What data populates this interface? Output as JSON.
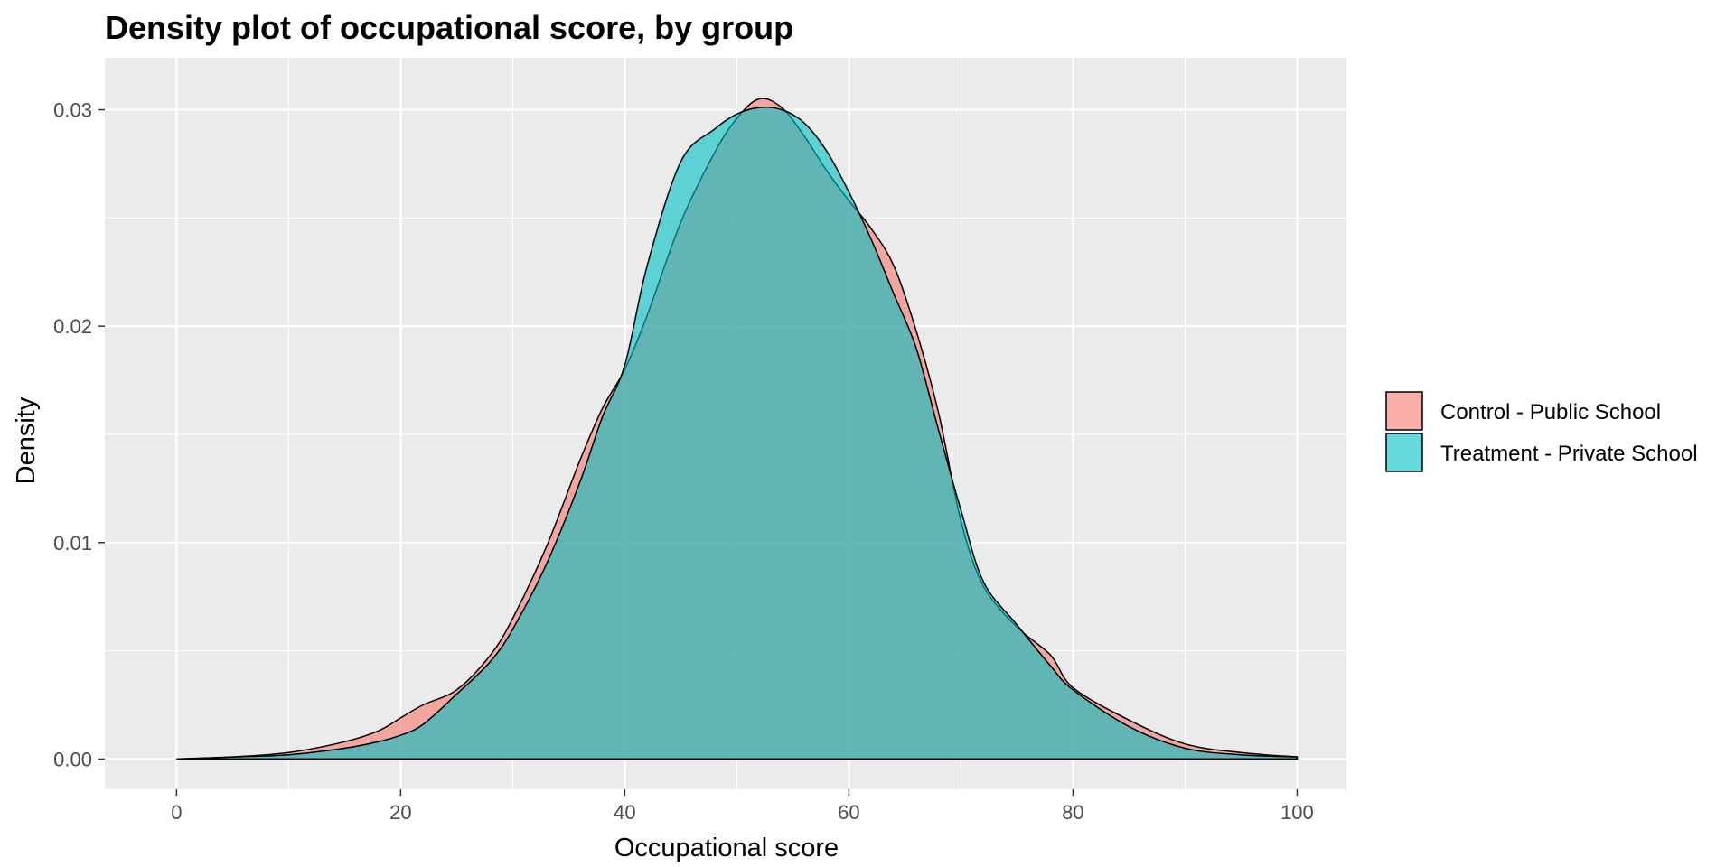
{
  "chart_data": {
    "type": "area",
    "title": "Density plot of occupational score, by group",
    "xlabel": "Occupational score",
    "ylabel": "Density",
    "xlim": [
      -6.4,
      104.4
    ],
    "ylim": [
      -0.0014,
      0.0324
    ],
    "x_ticks": [
      0,
      20,
      40,
      60,
      80,
      100
    ],
    "x_tick_labels": [
      "0",
      "20",
      "40",
      "60",
      "80",
      "100"
    ],
    "y_ticks": [
      0,
      0.01,
      0.02,
      0.03
    ],
    "y_tick_labels": [
      "0.00",
      "0.01",
      "0.02",
      "0.03"
    ],
    "grid": true,
    "legend_position": "right",
    "panel_background": "#EBEBEB",
    "series": [
      {
        "name": "Control - Public School",
        "color": "#F8766D",
        "x": [
          0,
          5,
          10,
          15,
          18,
          20,
          22,
          25,
          28,
          30,
          33,
          36,
          38,
          40,
          42,
          45,
          48,
          50,
          52,
          54,
          56,
          58,
          60,
          62,
          64,
          66,
          68,
          70,
          72,
          75,
          78,
          80,
          85,
          90,
          95,
          100
        ],
        "y": [
          0,
          0.0001,
          0.0003,
          0.0008,
          0.0013,
          0.0019,
          0.0025,
          0.0032,
          0.0048,
          0.0065,
          0.0098,
          0.0138,
          0.0162,
          0.018,
          0.0205,
          0.0248,
          0.028,
          0.0296,
          0.0305,
          0.0301,
          0.0288,
          0.0272,
          0.0258,
          0.0245,
          0.0228,
          0.0198,
          0.016,
          0.011,
          0.008,
          0.0061,
          0.0048,
          0.0033,
          0.0018,
          0.0007,
          0.0003,
          0.0001
        ]
      },
      {
        "name": "Treatment - Private School",
        "color": "#00BFC4",
        "x": [
          0,
          5,
          10,
          15,
          18,
          20,
          22,
          25,
          28,
          30,
          33,
          36,
          38,
          40,
          42,
          45,
          48,
          50,
          52,
          54,
          56,
          58,
          60,
          62,
          64,
          66,
          68,
          70,
          72,
          75,
          78,
          80,
          85,
          90,
          95,
          100
        ],
        "y": [
          0,
          0.0001,
          0.0002,
          0.0005,
          0.0008,
          0.0011,
          0.0016,
          0.003,
          0.0045,
          0.006,
          0.009,
          0.0128,
          0.0158,
          0.0182,
          0.0228,
          0.0276,
          0.0291,
          0.0298,
          0.0301,
          0.03,
          0.0294,
          0.0281,
          0.0262,
          0.024,
          0.0215,
          0.019,
          0.0152,
          0.0115,
          0.0082,
          0.0062,
          0.0043,
          0.0032,
          0.0015,
          0.0005,
          0.0002,
          0.0001
        ]
      }
    ]
  }
}
